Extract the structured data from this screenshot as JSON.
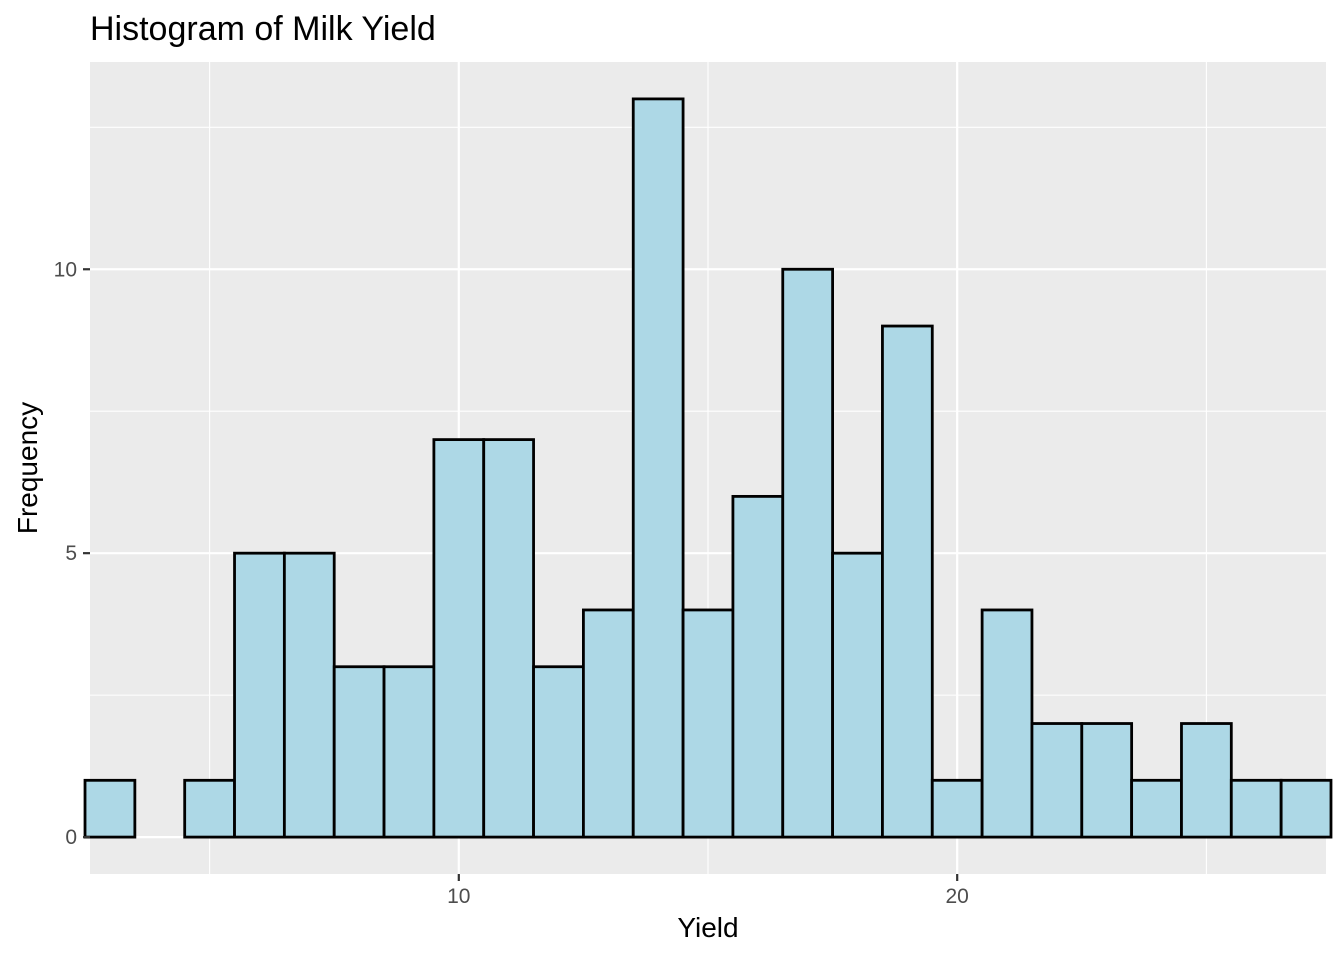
{
  "chart_data": {
    "type": "bar",
    "title": "Histogram of Milk Yield",
    "xlabel": "Yield",
    "ylabel": "Frequency",
    "bins": [
      {
        "x": 3.0,
        "count": 1
      },
      {
        "x": 4.0,
        "count": 0
      },
      {
        "x": 5.0,
        "count": 1
      },
      {
        "x": 6.0,
        "count": 5
      },
      {
        "x": 7.0,
        "count": 5
      },
      {
        "x": 8.0,
        "count": 3
      },
      {
        "x": 9.0,
        "count": 3
      },
      {
        "x": 10.0,
        "count": 7
      },
      {
        "x": 11.0,
        "count": 7
      },
      {
        "x": 12.0,
        "count": 3
      },
      {
        "x": 13.0,
        "count": 4
      },
      {
        "x": 14.0,
        "count": 13
      },
      {
        "x": 15.0,
        "count": 4
      },
      {
        "x": 16.0,
        "count": 6
      },
      {
        "x": 17.0,
        "count": 10
      },
      {
        "x": 18.0,
        "count": 5
      },
      {
        "x": 19.0,
        "count": 9
      },
      {
        "x": 20.0,
        "count": 1
      },
      {
        "x": 21.0,
        "count": 4
      },
      {
        "x": 22.0,
        "count": 2
      },
      {
        "x": 23.0,
        "count": 2
      },
      {
        "x": 24.0,
        "count": 1
      },
      {
        "x": 25.0,
        "count": 2
      },
      {
        "x": 26.0,
        "count": 1
      },
      {
        "x": 27.0,
        "count": 1
      }
    ],
    "bin_width": 1.0,
    "xlim": [
      2.6,
      27.4
    ],
    "ylim": [
      -0.65,
      13.65
    ],
    "x_ticks": [
      {
        "value": 10,
        "label": "10"
      },
      {
        "value": 20,
        "label": "20"
      }
    ],
    "y_ticks": [
      {
        "value": 0,
        "label": "0"
      },
      {
        "value": 5,
        "label": "5"
      },
      {
        "value": 10,
        "label": "10"
      }
    ],
    "x_minor": [
      5,
      15,
      25
    ],
    "y_minor": [
      2.5,
      7.5,
      12.5
    ],
    "grid": true,
    "bar_fill": "#add8e6",
    "bar_outline": "#000000",
    "panel_background": "#ebebeb",
    "grid_color": "#ffffff"
  }
}
